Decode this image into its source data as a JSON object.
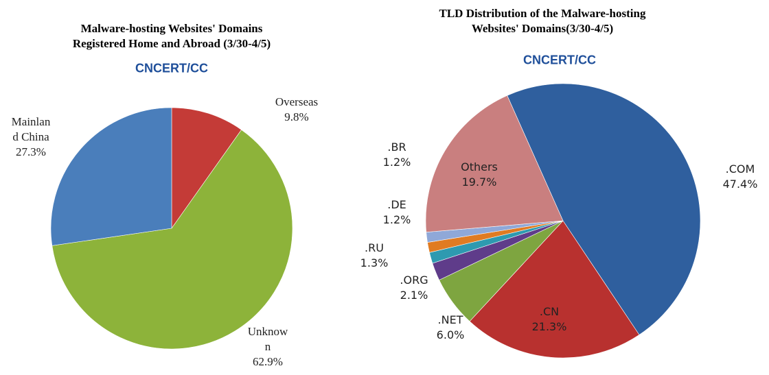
{
  "chart_data": [
    {
      "type": "pie",
      "title": "Malware-hosting Websites' Domains\nRegistered Home and Abroad (3/30-4/5)",
      "subtitle": "CNCERT/CC",
      "categories": [
        "Overseas",
        "Unknow\nn",
        "Mainlan\nd China"
      ],
      "values": [
        9.8,
        62.9,
        27.3
      ],
      "value_labels": [
        "9.8%",
        "62.9%",
        "27.3%"
      ],
      "colors": [
        "#c43b37",
        "#8db33a",
        "#4a7ebb"
      ]
    },
    {
      "type": "pie",
      "title": "TLD Distribution of the Malware-hosting\nWebsites' Domains(3/30-4/5)",
      "subtitle": "CNCERT/CC",
      "categories": [
        ".COM",
        ".CN",
        ".NET",
        ".ORG",
        ".RU",
        ".DE",
        ".BR",
        "Others"
      ],
      "values": [
        47.4,
        21.3,
        6.0,
        2.1,
        1.3,
        1.2,
        1.2,
        19.7
      ],
      "value_labels": [
        "47.4%",
        "21.3%",
        "6.0%",
        "2.1%",
        "1.3%",
        "1.2%",
        "1.2%",
        "19.7%"
      ],
      "colors": [
        "#2f5f9e",
        "#b8312f",
        "#7ea540",
        "#5f3c8a",
        "#2e9ab0",
        "#e07b22",
        "#8fa8d8",
        "#c97f7f"
      ]
    }
  ]
}
